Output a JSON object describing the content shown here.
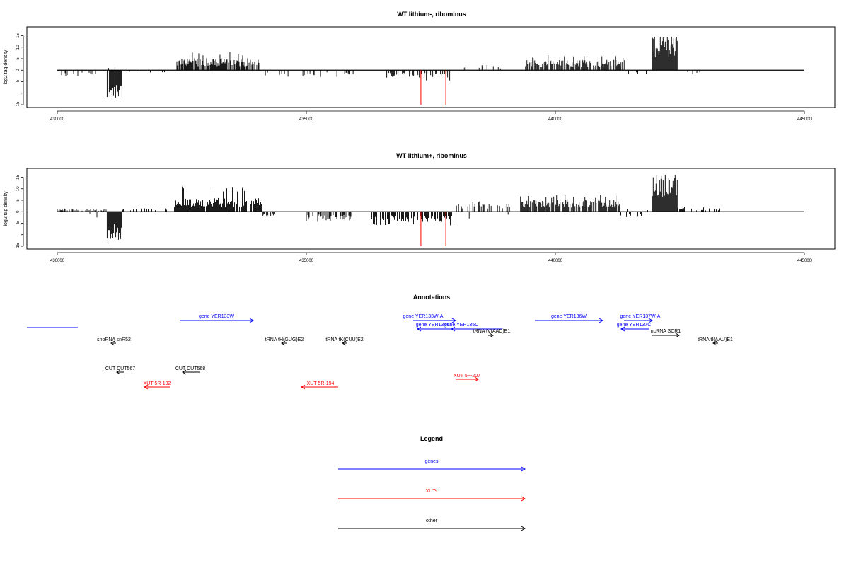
{
  "chart_data": [
    {
      "type": "bar",
      "title": "WT lithium-, ribominus",
      "xlabel": "",
      "ylabel": "log2 tag density",
      "xlim": [
        429800,
        445100
      ],
      "ylim": [
        -15,
        17
      ],
      "xticks": [
        430000,
        435000,
        440000,
        445000
      ],
      "xtick_labels": [
        "430000",
        "435000",
        "440000",
        "445000"
      ],
      "yticks": [
        -15,
        -10,
        -5,
        0,
        5,
        10,
        15
      ],
      "ytick_labels": [
        "-15",
        "",
        "-5",
        "0",
        "5",
        "10",
        "15"
      ],
      "baseline": {
        "x_start": 430000,
        "x_end": 445000
      },
      "markers": [
        {
          "x": 437300,
          "y": -15,
          "color": "#ff0000"
        },
        {
          "x": 437800,
          "y": -15,
          "color": "#ff0000"
        }
      ],
      "regions": [
        {
          "x_start": 430000,
          "x_end": 430800,
          "y_min": -3.5,
          "y_max": 0.5,
          "density": 0.25
        },
        {
          "x_start": 431000,
          "x_end": 431300,
          "y_min": -12,
          "y_max": 1.5,
          "density": 0.9,
          "main": -8
        },
        {
          "x_start": 431300,
          "x_end": 432300,
          "y_min": -2,
          "y_max": 0.5,
          "density": 0.1
        },
        {
          "x_start": 432400,
          "x_end": 434050,
          "y_min": 0,
          "y_max": 8,
          "density": 0.8,
          "main": 3.5
        },
        {
          "x_start": 434050,
          "x_end": 436000,
          "y_min": -3,
          "y_max": 0,
          "density": 0.2
        },
        {
          "x_start": 436600,
          "x_end": 437900,
          "y_min": -4.5,
          "y_max": 0,
          "density": 0.35
        },
        {
          "x_start": 438100,
          "x_end": 439100,
          "y_min": -1,
          "y_max": 3,
          "density": 0.1
        },
        {
          "x_start": 439400,
          "x_end": 441400,
          "y_min": 0,
          "y_max": 6.5,
          "density": 0.75,
          "main": 3
        },
        {
          "x_start": 441400,
          "x_end": 441950,
          "y_min": -2.5,
          "y_max": 0.5,
          "density": 0.15
        },
        {
          "x_start": 441950,
          "x_end": 442450,
          "y_min": 0,
          "y_max": 14.5,
          "density": 1.0,
          "main": 11
        },
        {
          "x_start": 442600,
          "x_end": 442900,
          "y_min": -2.5,
          "y_max": 0,
          "density": 0.2
        }
      ]
    },
    {
      "type": "bar",
      "title": "WT lithium+, ribominus",
      "xlabel": "",
      "ylabel": "log2 tag density",
      "xlim": [
        429800,
        445100
      ],
      "ylim": [
        -15,
        17
      ],
      "xticks": [
        430000,
        435000,
        440000,
        445000
      ],
      "xtick_labels": [
        "430000",
        "435000",
        "440000",
        "445000"
      ],
      "yticks": [
        -15,
        -10,
        -5,
        0,
        5,
        10,
        15
      ],
      "ytick_labels": [
        "-15",
        "",
        "-5",
        "0",
        "5",
        "10",
        "15"
      ],
      "baseline": {
        "x_start": 430000,
        "x_end": 445000
      },
      "markers": [
        {
          "x": 437300,
          "y": -15,
          "color": "#ff0000"
        },
        {
          "x": 437800,
          "y": -15,
          "color": "#ff0000"
        }
      ],
      "regions": [
        {
          "x_start": 430000,
          "x_end": 431000,
          "y_min": -4,
          "y_max": 1.5,
          "density": 0.5
        },
        {
          "x_start": 431000,
          "x_end": 431300,
          "y_min": -14,
          "y_max": 0,
          "density": 0.95,
          "main": -8
        },
        {
          "x_start": 431300,
          "x_end": 432300,
          "y_min": -4,
          "y_max": 2,
          "density": 0.4
        },
        {
          "x_start": 432350,
          "x_end": 434100,
          "y_min": 0,
          "y_max": 11,
          "density": 0.9,
          "main": 4
        },
        {
          "x_start": 434100,
          "x_end": 434400,
          "y_min": -2.5,
          "y_max": 0,
          "density": 0.4
        },
        {
          "x_start": 435000,
          "x_end": 435900,
          "y_min": -4.5,
          "y_max": 0,
          "density": 0.6
        },
        {
          "x_start": 436300,
          "x_end": 438000,
          "y_min": -6,
          "y_max": 0,
          "density": 0.7
        },
        {
          "x_start": 438000,
          "x_end": 439100,
          "y_min": -3,
          "y_max": 4.5,
          "density": 0.4
        },
        {
          "x_start": 439300,
          "x_end": 441300,
          "y_min": 0,
          "y_max": 7.5,
          "density": 0.85,
          "main": 3.5
        },
        {
          "x_start": 441300,
          "x_end": 441950,
          "y_min": -2.5,
          "y_max": 1,
          "density": 0.3
        },
        {
          "x_start": 441950,
          "x_end": 442450,
          "y_min": 0,
          "y_max": 16,
          "density": 1.0,
          "main": 11
        },
        {
          "x_start": 442450,
          "x_end": 443300,
          "y_min": -4,
          "y_max": 2,
          "density": 0.35
        }
      ]
    }
  ],
  "annotations": {
    "title": "Annotations",
    "features": [
      {
        "label": "gene YER133W",
        "color": "#0000ff",
        "strand": "+"
      },
      {
        "label": "gene YER133W-A",
        "color": "#0000ff",
        "strand": "+"
      },
      {
        "label": "gene YER134C",
        "color": "#0000ff",
        "strand": "-"
      },
      {
        "label": "gene YER135C",
        "color": "#0000ff",
        "strand": "-"
      },
      {
        "label": "gene YER136W",
        "color": "#0000ff",
        "strand": "+"
      },
      {
        "label": "gene YER137W-A",
        "color": "#0000ff",
        "strand": "+"
      },
      {
        "label": "gene YER137C",
        "color": "#0000ff",
        "strand": "-"
      },
      {
        "label": "snoRNA snR52",
        "color": "#000000",
        "strand": "-"
      },
      {
        "label": "tRNA tH(GUG)E2",
        "color": "#000000",
        "strand": "-"
      },
      {
        "label": "tRNA tK(CUU)E2",
        "color": "#000000",
        "strand": "-"
      },
      {
        "label": "tRNA tV(AAC)E1",
        "color": "#000000",
        "strand": "+"
      },
      {
        "label": "ncRNA SCR1",
        "color": "#000000",
        "strand": "+"
      },
      {
        "label": "tRNA tI(AAU)E1",
        "color": "#000000",
        "strand": "-"
      },
      {
        "label": "CUT CUT567",
        "color": "#000000",
        "strand": "-"
      },
      {
        "label": "CUT CUT568",
        "color": "#000000",
        "strand": "-"
      },
      {
        "label": "XUT 5R-192",
        "color": "#ff0000",
        "strand": "-"
      },
      {
        "label": "XUT 5R-194",
        "color": "#ff0000",
        "strand": "-"
      },
      {
        "label": "XUT 5F-207",
        "color": "#ff0000",
        "strand": "+"
      }
    ]
  },
  "legend": {
    "title": "Legend",
    "entries": [
      {
        "label": "genes",
        "color": "#0000ff"
      },
      {
        "label": "XUTs",
        "color": "#ff0000"
      },
      {
        "label": "other",
        "color": "#000000"
      }
    ]
  },
  "colors": {
    "genes": "#0000ff",
    "xuts": "#ff0000",
    "other": "#000000",
    "marker": "#ff0000"
  }
}
